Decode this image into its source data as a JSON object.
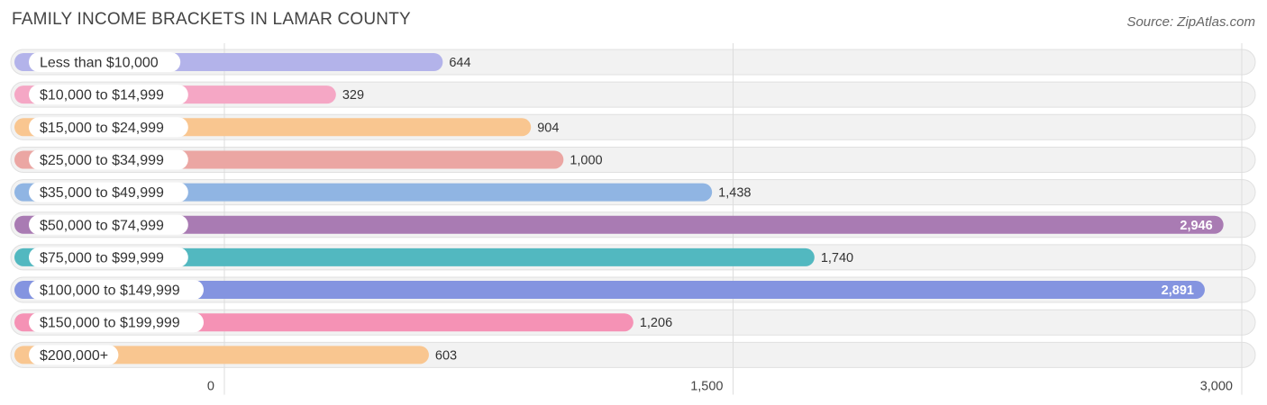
{
  "header": {
    "title": "FAMILY INCOME BRACKETS IN LAMAR COUNTY",
    "source": "Source: ZipAtlas.com"
  },
  "chart_data": {
    "type": "bar",
    "orientation": "horizontal",
    "title": "FAMILY INCOME BRACKETS IN LAMAR COUNTY",
    "xlabel": "",
    "ylabel": "",
    "xlim": [
      0,
      3000
    ],
    "ticks": [
      0,
      1500,
      3000
    ],
    "tick_labels": [
      "0",
      "1,500",
      "3,000"
    ],
    "grid": true,
    "categories": [
      "Less than $10,000",
      "$10,000 to $14,999",
      "$15,000 to $24,999",
      "$25,000 to $34,999",
      "$35,000 to $49,999",
      "$50,000 to $74,999",
      "$75,000 to $99,999",
      "$100,000 to $149,999",
      "$150,000 to $199,999",
      "$200,000+"
    ],
    "values": [
      644,
      329,
      904,
      1000,
      1438,
      2946,
      1740,
      2891,
      1206,
      603
    ],
    "value_labels": [
      "644",
      "329",
      "904",
      "1,000",
      "1,438",
      "2,946",
      "1,740",
      "2,891",
      "1,206",
      "603"
    ],
    "colors": [
      "#b3b3ea",
      "#f5a7c5",
      "#f9c690",
      "#eba6a3",
      "#90b5e3",
      "#a97bb3",
      "#52b8c0",
      "#8494e0",
      "#f592b5",
      "#f9c690"
    ]
  }
}
